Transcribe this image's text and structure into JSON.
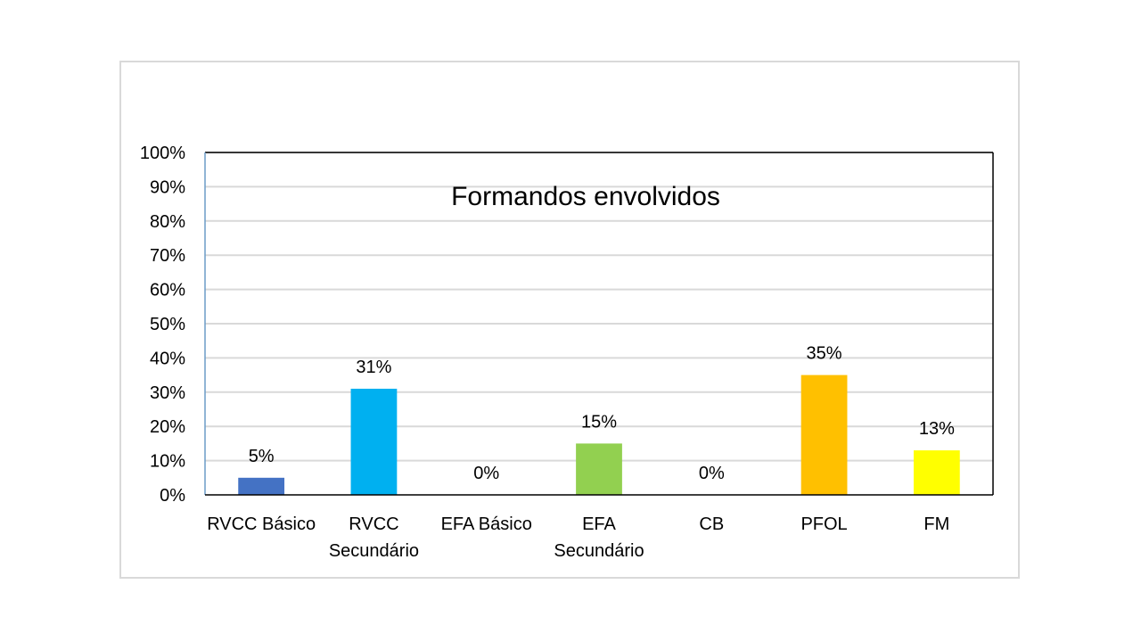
{
  "chart_data": {
    "type": "bar",
    "title": "Formandos envolvidos",
    "categories": [
      [
        "RVCC Básico"
      ],
      [
        "RVCC",
        "Secundário"
      ],
      [
        "EFA Básico"
      ],
      [
        "EFA",
        "Secundário"
      ],
      [
        "CB"
      ],
      [
        "PFOL"
      ],
      [
        "FM"
      ]
    ],
    "values": [
      5,
      31,
      0,
      15,
      0,
      35,
      13
    ],
    "data_labels": [
      "5%",
      "31%",
      "0%",
      "15%",
      "0%",
      "35%",
      "13%"
    ],
    "colors": [
      "#4472c4",
      "#00b0f0",
      "#00b0f0",
      "#92d050",
      "#92d050",
      "#ffc000",
      "#ffff00"
    ],
    "ylim": [
      0,
      100
    ],
    "yticks": [
      0,
      10,
      20,
      30,
      40,
      50,
      60,
      70,
      80,
      90,
      100
    ],
    "ytick_labels": [
      "0%",
      "10%",
      "20%",
      "30%",
      "40%",
      "50%",
      "60%",
      "70%",
      "80%",
      "90%",
      "100%"
    ],
    "xlabel": "",
    "ylabel": "",
    "grid": true,
    "legend": "none"
  }
}
